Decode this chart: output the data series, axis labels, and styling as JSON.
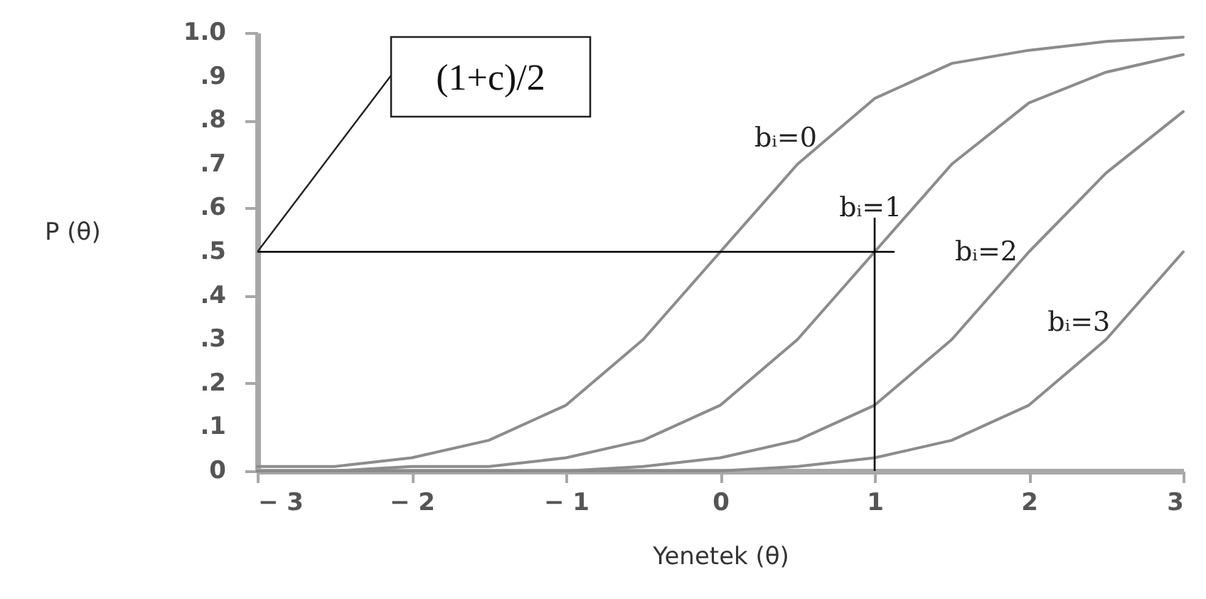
{
  "chart_data": {
    "type": "line",
    "xlabel": "Yenetek (θ)",
    "ylabel": "P (θ)",
    "x": [
      -3,
      -2.5,
      -2,
      -1.5,
      -1,
      -0.5,
      0,
      0.5,
      1,
      1.5,
      2,
      2.5,
      3
    ],
    "series": [
      {
        "color": "#8c8c8c",
        "values": [
          0.01,
          0.01,
          0.03,
          0.07,
          0.15,
          0.3,
          0.5,
          0.7,
          0.85,
          0.93,
          0.96,
          0.98,
          0.99
        ]
      },
      {
        "color": "#8c8c8c",
        "values": [
          0.0,
          0.0,
          0.01,
          0.01,
          0.03,
          0.07,
          0.15,
          0.3,
          0.5,
          0.7,
          0.84,
          0.91,
          0.95
        ]
      },
      {
        "color": "#8c8c8c",
        "values": [
          0.0,
          0.0,
          0.0,
          0.0,
          0.0,
          0.01,
          0.03,
          0.07,
          0.15,
          0.3,
          0.5,
          0.68,
          0.82
        ]
      },
      {
        "color": "#8c8c8c",
        "values": [
          0.0,
          0.0,
          0.0,
          0.0,
          0.0,
          0.0,
          0.0,
          0.01,
          0.03,
          0.07,
          0.15,
          0.3,
          0.5
        ]
      }
    ],
    "xlim": [
      -3,
      3
    ],
    "ylim": [
      0,
      1
    ],
    "xticks": [
      {
        "value": -3,
        "label": "− 3"
      },
      {
        "value": -2,
        "label": "− 2"
      },
      {
        "value": -1,
        "label": "− 1"
      },
      0,
      1,
      2,
      3
    ],
    "yticks": [
      0,
      {
        "value": 0.1,
        "label": ".1"
      },
      {
        "value": 0.2,
        "label": ".2"
      },
      {
        "value": 0.3,
        "label": ".3"
      },
      {
        "value": 0.4,
        "label": ".4"
      },
      {
        "value": 0.5,
        "label": ".5"
      },
      {
        "value": 0.6,
        "label": ".6"
      },
      {
        "value": 0.7,
        "label": ".7"
      },
      {
        "value": 0.8,
        "label": ".8"
      },
      {
        "value": 0.9,
        "label": ".9"
      },
      {
        "value": 1,
        "label": "1.0"
      }
    ],
    "ref_lines": [
      {
        "axis": "y",
        "value": 0.5,
        "color": "#000000"
      },
      {
        "axis": "x",
        "value": 1,
        "color": "#000000"
      }
    ],
    "annotations": [
      {
        "text": "(1+c)/2",
        "x": -3,
        "y": 0.5
      },
      {
        "text": "bᵢ=0",
        "x": 0.7,
        "y": 0.76
      },
      {
        "text": "bᵢ=1",
        "x": 1.25,
        "y": 0.6
      },
      {
        "text": "bᵢ=2",
        "x": 2,
        "y": 0.5
      },
      {
        "text": "bᵢ=3",
        "x": 2.6,
        "y": 0.34
      }
    ],
    "grid": false,
    "legend": false,
    "marker": "none",
    "line_style": "solid"
  }
}
